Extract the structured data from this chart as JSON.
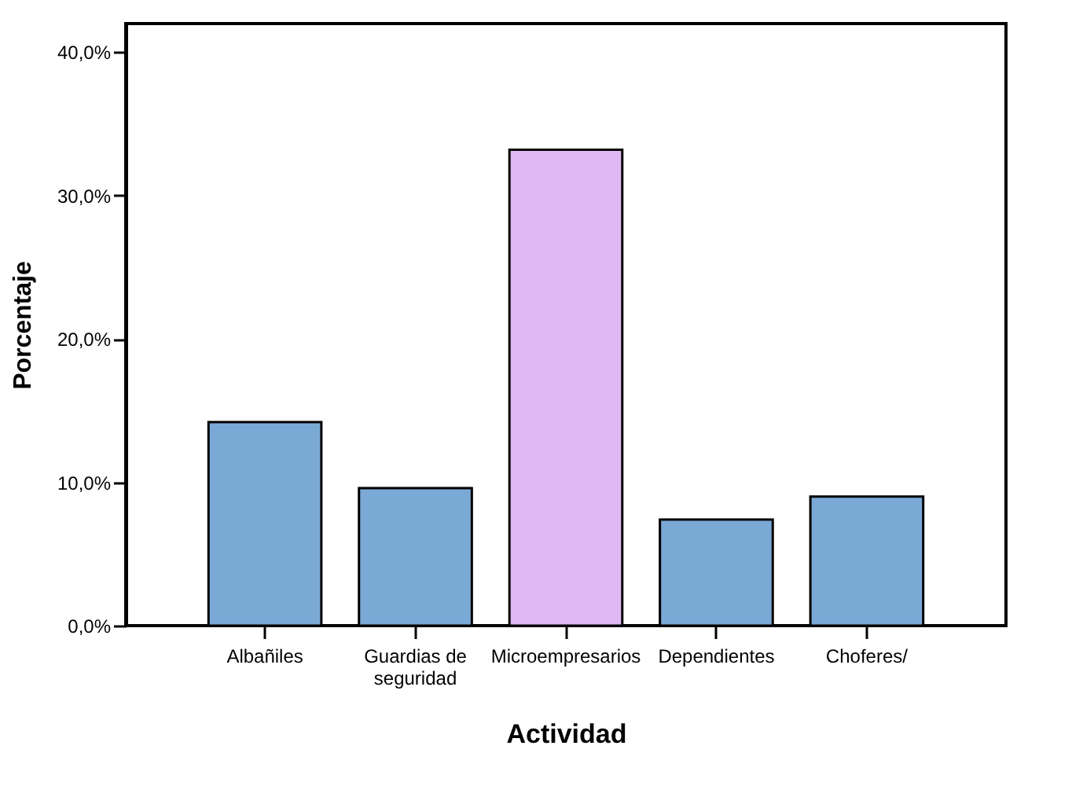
{
  "chart_data": {
    "type": "bar",
    "xlabel": "Actividad",
    "ylabel": "Porcentaje",
    "categories": [
      "Albañiles",
      "Guardias de seguridad",
      "Microempresarios",
      "Dependientes",
      "Choferes/"
    ],
    "values": [
      14.2,
      9.6,
      33.2,
      7.4,
      9.0
    ],
    "colors": [
      "#7ba9d6",
      "#7ba9d6",
      "#e0b9f2",
      "#7ba9d6",
      "#7ba9d6"
    ],
    "ylim": [
      0,
      42
    ],
    "yticks": [
      {
        "value": 0,
        "label": "0,0%"
      },
      {
        "value": 10,
        "label": "10,0%"
      },
      {
        "value": 20,
        "label": "20,0%"
      },
      {
        "value": 30,
        "label": "30,0%"
      },
      {
        "value": 40,
        "label": "40,0%"
      }
    ],
    "grid": false
  }
}
